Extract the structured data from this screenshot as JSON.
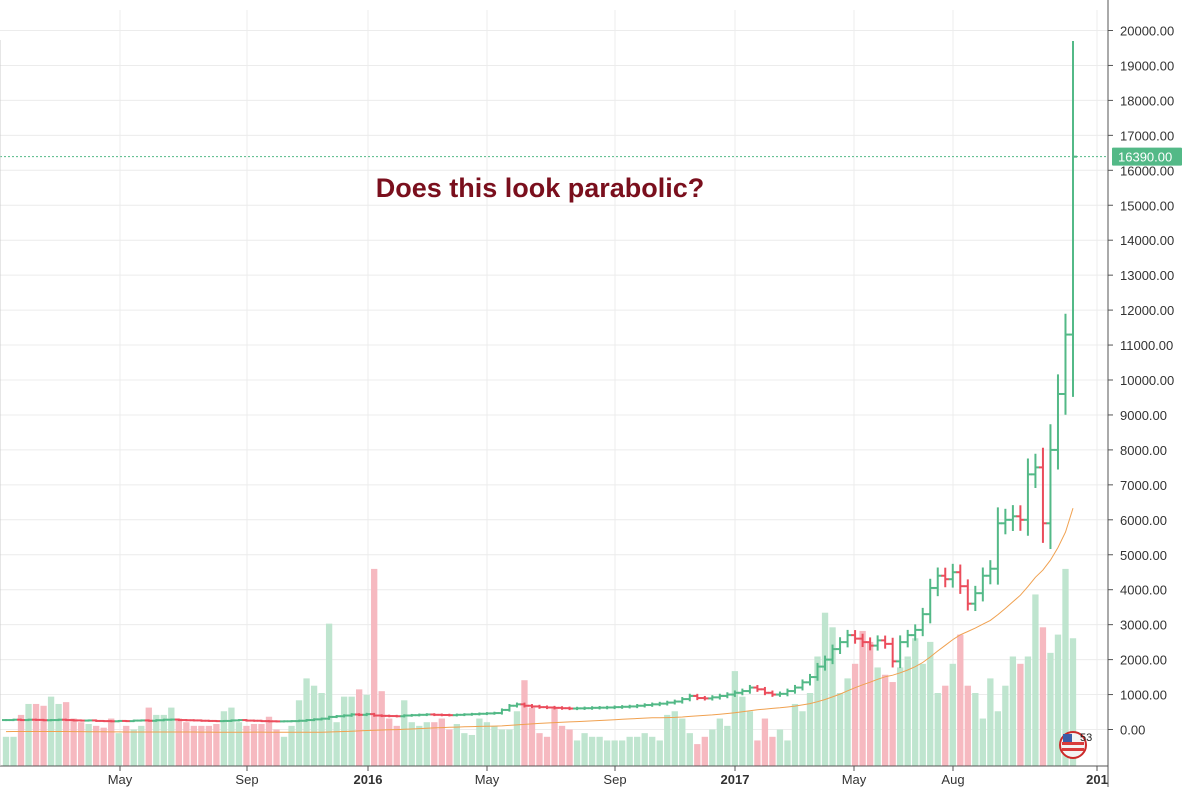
{
  "chart_data": {
    "type": "ohlc",
    "annotation": "Does this look parabolic?",
    "last_price_label": "16390.00",
    "last_price": 16390,
    "y_ticks": [
      {
        "value": 0,
        "label": "0.00"
      },
      {
        "value": 1000,
        "label": "1000.00"
      },
      {
        "value": 2000,
        "label": "2000.00"
      },
      {
        "value": 3000,
        "label": "3000.00"
      },
      {
        "value": 4000,
        "label": "4000.00"
      },
      {
        "value": 5000,
        "label": "5000.00"
      },
      {
        "value": 6000,
        "label": "6000.00"
      },
      {
        "value": 7000,
        "label": "7000.00"
      },
      {
        "value": 8000,
        "label": "8000.00"
      },
      {
        "value": 9000,
        "label": "9000.00"
      },
      {
        "value": 10000,
        "label": "10000.00"
      },
      {
        "value": 11000,
        "label": "11000.00"
      },
      {
        "value": 12000,
        "label": "12000.00"
      },
      {
        "value": 13000,
        "label": "13000.00"
      },
      {
        "value": 14000,
        "label": "14000.00"
      },
      {
        "value": 15000,
        "label": "15000.00"
      },
      {
        "value": 16000,
        "label": "16000.00"
      },
      {
        "value": 17000,
        "label": "17000.00"
      },
      {
        "value": 18000,
        "label": "18000.00"
      },
      {
        "value": 19000,
        "label": "19000.00"
      },
      {
        "value": 20000,
        "label": "20000.00"
      }
    ],
    "x_ticks": [
      {
        "label": "May",
        "bold": false
      },
      {
        "label": "Sep",
        "bold": false
      },
      {
        "label": "2016",
        "bold": true
      },
      {
        "label": "May",
        "bold": false
      },
      {
        "label": "Sep",
        "bold": false
      },
      {
        "label": "2017",
        "bold": true
      },
      {
        "label": "May",
        "bold": false
      },
      {
        "label": "Aug",
        "bold": false
      },
      {
        "label": "201",
        "bold": true
      }
    ],
    "ylim": [
      -1000,
      20300
    ],
    "grid": true,
    "colors": {
      "up": "#53b987",
      "down": "#eb4d5c",
      "volume_up": "#bfe5cf",
      "volume_down": "#f6b9c0",
      "ma": "#f0a150",
      "price_line": "#53b987",
      "annotation": "#7a0f1d"
    },
    "weekly_closes": [
      270,
      280,
      270,
      280,
      275,
      265,
      270,
      280,
      270,
      260,
      255,
      260,
      245,
      240,
      235,
      245,
      240,
      255,
      260,
      250,
      265,
      280,
      285,
      270,
      265,
      260,
      250,
      245,
      240,
      245,
      260,
      270,
      255,
      250,
      240,
      235,
      232,
      235,
      240,
      250,
      270,
      290,
      310,
      360,
      380,
      400,
      430,
      420,
      440,
      400,
      390,
      385,
      380,
      400,
      410,
      420,
      430,
      420,
      415,
      410,
      420,
      430,
      440,
      450,
      460,
      470,
      560,
      680,
      720,
      680,
      660,
      640,
      630,
      620,
      610,
      600,
      605,
      610,
      620,
      625,
      630,
      640,
      650,
      660,
      680,
      700,
      720,
      740,
      770,
      800,
      870,
      960,
      900,
      890,
      920,
      960,
      1000,
      1050,
      1100,
      1200,
      1150,
      1050,
      1000,
      1020,
      1100,
      1200,
      1350,
      1500,
      1800,
      2000,
      2300,
      2500,
      2700,
      2600,
      2500,
      2400,
      2550,
      2450,
      1950,
      2500,
      2700,
      2850,
      3300,
      4050,
      4400,
      4300,
      4500,
      4100,
      3600,
      3900,
      4400,
      4600,
      5900,
      6000,
      6100,
      6000,
      7300,
      7500,
      5900,
      8000,
      9600,
      11300,
      16390
    ],
    "weekly_volumes": [
      -200,
      -200,
      400,
      700,
      700,
      650,
      900,
      700,
      750,
      300,
      200,
      150,
      100,
      50,
      300,
      -100,
      100,
      0,
      100,
      600,
      400,
      400,
      600,
      300,
      200,
      100,
      100,
      100,
      150,
      500,
      600,
      200,
      100,
      150,
      150,
      350,
      0,
      -200,
      100,
      800,
      1400,
      1200,
      1000,
      2900,
      200,
      900,
      900,
      1100,
      950,
      4400,
      1050,
      300,
      100,
      800,
      200,
      100,
      200,
      200,
      300,
      0,
      150,
      -100,
      -150,
      300,
      200,
      100,
      0,
      0,
      500,
      1350,
      600,
      -100,
      -200,
      600,
      100,
      0,
      -300,
      -100,
      -200,
      -200,
      -300,
      -300,
      -300,
      -200,
      -200,
      -100,
      -200,
      -300,
      400,
      500,
      300,
      -100,
      -400,
      -200,
      0,
      300,
      100,
      1600,
      900,
      500,
      -300,
      300,
      -200,
      0,
      -300,
      700,
      500,
      1000,
      2000,
      3200,
      2800,
      1000,
      1400,
      1800,
      2700,
      2400,
      1700,
      1500,
      1300,
      1700,
      2000,
      2500,
      1800,
      2400,
      1000,
      1200,
      1800,
      2600,
      1200,
      1000,
      300,
      1400,
      500,
      1200,
      2000,
      1800,
      2000,
      3700,
      2800,
      2100,
      2600,
      4400,
      2500
    ]
  },
  "badge": {
    "text": "53",
    "icon": "us-flag-icon"
  }
}
